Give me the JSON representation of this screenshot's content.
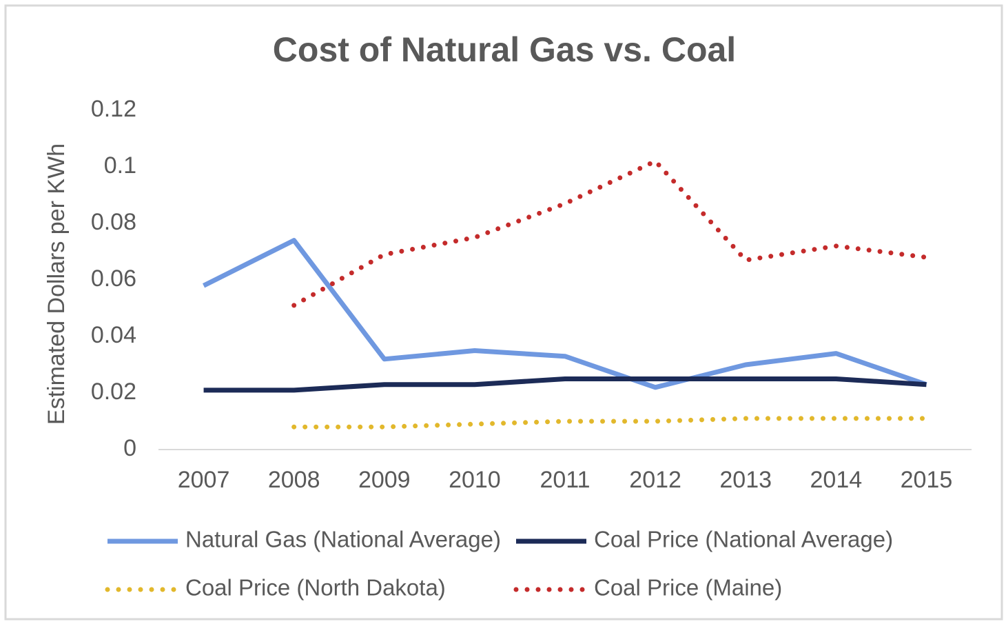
{
  "chart_data": {
    "type": "line",
    "title": "Cost of Natural Gas vs. Coal",
    "y_label": "Estimated Dollars per KWh",
    "categories": [
      "2007",
      "2008",
      "2009",
      "2010",
      "2011",
      "2012",
      "2013",
      "2014",
      "2015"
    ],
    "series": [
      {
        "name": "Natural Gas (National Average)",
        "color": "#6f98e0",
        "style": "solid",
        "values": [
          0.058,
          0.074,
          0.032,
          0.035,
          0.033,
          0.022,
          0.03,
          0.034,
          0.023
        ]
      },
      {
        "name": "Coal Price (National Average)",
        "color": "#1c2b57",
        "style": "solid",
        "values": [
          0.021,
          0.021,
          0.023,
          0.023,
          0.025,
          0.025,
          0.025,
          0.025,
          0.023
        ]
      },
      {
        "name": "Coal Price (North Dakota)",
        "color": "#e2b82c",
        "style": "dotted",
        "values": [
          null,
          0.008,
          0.008,
          0.009,
          0.01,
          0.01,
          0.011,
          0.011,
          0.011
        ]
      },
      {
        "name": "Coal Price (Maine)",
        "color": "#c42b2b",
        "style": "dotted",
        "values": [
          null,
          0.051,
          0.069,
          0.075,
          0.087,
          0.102,
          0.067,
          0.072,
          0.068
        ]
      }
    ],
    "ylim": [
      0,
      0.12
    ],
    "yticks": [
      0,
      0.02,
      0.04,
      0.06,
      0.08,
      0.1,
      0.12
    ],
    "grid": false,
    "legend": "bottom"
  }
}
